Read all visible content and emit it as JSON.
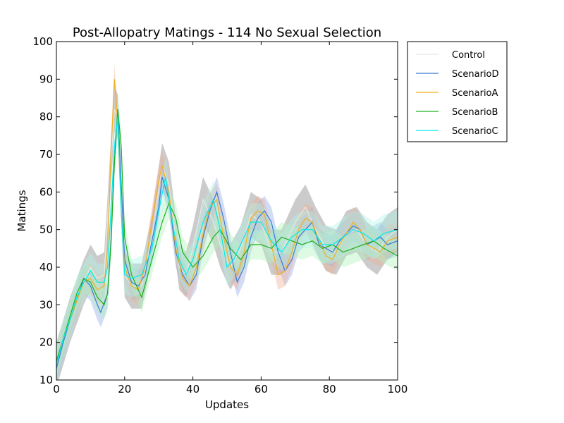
{
  "chart_data": {
    "type": "line",
    "title": "Post-Allopatry Matings - 114 No Sexual Selection",
    "xlabel": "Updates",
    "ylabel": "Matings",
    "xlim": [
      0,
      100
    ],
    "ylim": [
      10,
      100
    ],
    "xticks": [
      0,
      20,
      40,
      60,
      80,
      100
    ],
    "yticks": [
      10,
      20,
      30,
      40,
      50,
      60,
      70,
      80,
      90,
      100
    ],
    "grid": false,
    "legend_position": "outside-right-top",
    "series": [
      {
        "name": "Control",
        "color": "#e8e8e8",
        "band_color": "#a0a0a0",
        "band_halfwidth": 6,
        "x": [
          0,
          4,
          8,
          10,
          12,
          14,
          16,
          17,
          18,
          19,
          20,
          22,
          25,
          28,
          31,
          33,
          36,
          38,
          40,
          43,
          46,
          48,
          51,
          54,
          57,
          60,
          63,
          66,
          70,
          73,
          76,
          79,
          82,
          85,
          88,
          91,
          94,
          97,
          100
        ],
        "values": [
          14,
          26,
          36,
          40,
          37,
          38,
          68,
          82,
          80,
          58,
          38,
          35,
          35,
          48,
          67,
          62,
          40,
          38,
          45,
          58,
          52,
          46,
          40,
          45,
          54,
          52,
          44,
          44,
          52,
          56,
          50,
          45,
          44,
          49,
          50,
          46,
          44,
          48,
          50
        ]
      },
      {
        "name": "ScenarioD",
        "color": "#3a7bd5",
        "band_color": "#8fa8ec",
        "band_halfwidth": 4,
        "x": [
          0,
          2,
          4,
          6,
          8,
          10,
          12,
          13,
          15,
          16,
          17,
          18,
          19,
          20,
          22,
          24,
          26,
          28,
          30,
          31,
          33,
          35,
          37,
          39,
          41,
          43,
          45,
          47,
          49,
          51,
          53,
          55,
          57,
          59,
          61,
          63,
          65,
          67,
          69,
          71,
          73,
          75,
          77,
          79,
          81,
          83,
          85,
          87,
          89,
          91,
          93,
          95,
          97,
          100
        ],
        "values": [
          13,
          20,
          26,
          31,
          37,
          35,
          30,
          28,
          33,
          47,
          68,
          82,
          62,
          42,
          36,
          35,
          38,
          47,
          56,
          64,
          58,
          44,
          38,
          35,
          38,
          48,
          55,
          60,
          53,
          44,
          36,
          40,
          48,
          53,
          55,
          52,
          44,
          39,
          42,
          48,
          50,
          52,
          46,
          45,
          44,
          47,
          49,
          51,
          50,
          46,
          47,
          48,
          46,
          47
        ]
      },
      {
        "name": "ScenarioA",
        "color": "#f0b020",
        "band_color": "#f0b090",
        "band_halfwidth": 4,
        "x": [
          0,
          2,
          4,
          6,
          8,
          10,
          12,
          14,
          15,
          16,
          17,
          18,
          19,
          20,
          22,
          24,
          26,
          28,
          30,
          31,
          33,
          35,
          37,
          39,
          41,
          43,
          45,
          47,
          49,
          51,
          53,
          55,
          57,
          59,
          61,
          63,
          65,
          67,
          69,
          71,
          73,
          75,
          77,
          79,
          81,
          83,
          85,
          87,
          89,
          91,
          93,
          95,
          97,
          100
        ],
        "values": [
          15,
          21,
          26,
          31,
          36,
          37,
          34,
          35,
          45,
          70,
          90,
          78,
          55,
          40,
          35,
          34,
          40,
          52,
          63,
          67,
          60,
          45,
          37,
          35,
          40,
          49,
          56,
          58,
          48,
          40,
          38,
          44,
          53,
          55,
          54,
          46,
          38,
          39,
          44,
          50,
          53,
          52,
          47,
          43,
          42,
          46,
          49,
          52,
          50,
          46,
          45,
          44,
          47,
          48
        ]
      },
      {
        "name": "ScenarioB",
        "color": "#1db01d",
        "band_color": "#b0f2b8",
        "band_halfwidth": 4,
        "x": [
          0,
          2,
          4,
          6,
          8,
          10,
          12,
          14,
          15,
          16,
          17,
          18,
          19,
          20,
          22,
          25,
          28,
          31,
          33,
          35,
          37,
          40,
          43,
          46,
          48,
          51,
          54,
          57,
          60,
          63,
          66,
          69,
          72,
          75,
          78,
          81,
          84,
          87,
          90,
          93,
          96,
          100
        ],
        "values": [
          15,
          21,
          27,
          33,
          37,
          36,
          32,
          30,
          33,
          46,
          68,
          82,
          72,
          48,
          38,
          32,
          42,
          52,
          57,
          53,
          44,
          40,
          43,
          48,
          50,
          45,
          42,
          46,
          46,
          45,
          48,
          47,
          46,
          47,
          45,
          46,
          44,
          45,
          46,
          47,
          45,
          43
        ]
      },
      {
        "name": "ScenarioC",
        "color": "#00eaea",
        "band_color": "#b0f5e5",
        "band_halfwidth": 5,
        "x": [
          0,
          2,
          4,
          6,
          8,
          10,
          12,
          14,
          15,
          16,
          17,
          18,
          19,
          20,
          22,
          25,
          28,
          30,
          32,
          34,
          36,
          38,
          40,
          43,
          46,
          48,
          50,
          52,
          55,
          57,
          60,
          63,
          66,
          69,
          72,
          75,
          78,
          81,
          84,
          87,
          90,
          93,
          96,
          100
        ],
        "values": [
          14,
          21,
          26,
          32,
          36,
          39,
          36,
          36,
          40,
          55,
          72,
          80,
          55,
          38,
          37,
          38,
          45,
          55,
          64,
          52,
          42,
          38,
          42,
          52,
          58,
          50,
          40,
          42,
          48,
          52,
          52,
          47,
          44,
          48,
          50,
          50,
          46,
          46,
          48,
          50,
          49,
          47,
          49,
          50
        ]
      }
    ]
  }
}
